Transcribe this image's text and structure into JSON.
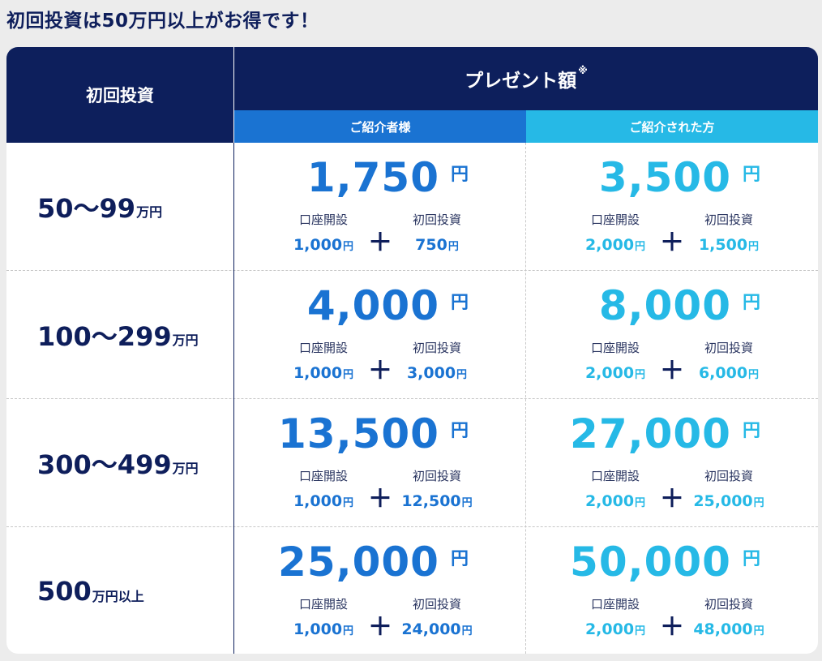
{
  "heading": "初回投資は50万円以上がお得です！",
  "header": {
    "investment": "初回投資",
    "present": "プレゼント額",
    "present_note": "※",
    "referrer": "ご紹介者様",
    "referee": "ご紹介された方"
  },
  "labels": {
    "account": "口座開設",
    "first_invest": "初回投資",
    "yen": "円",
    "plus": "＋"
  },
  "colors": {
    "navy": "#0d1f5c",
    "blue": "#1a73d2",
    "cyan": "#26b9e6"
  },
  "rows": [
    {
      "range": "50〜99",
      "unit": "万円",
      "referrer": {
        "total": "1,750",
        "account": "1,000",
        "invest": "750"
      },
      "referee": {
        "total": "3,500",
        "account": "2,000",
        "invest": "1,500"
      }
    },
    {
      "range": "100〜299",
      "unit": "万円",
      "referrer": {
        "total": "4,000",
        "account": "1,000",
        "invest": "3,000"
      },
      "referee": {
        "total": "8,000",
        "account": "2,000",
        "invest": "6,000"
      }
    },
    {
      "range": "300〜499",
      "unit": "万円",
      "referrer": {
        "total": "13,500",
        "account": "1,000",
        "invest": "12,500"
      },
      "referee": {
        "total": "27,000",
        "account": "2,000",
        "invest": "25,000"
      }
    },
    {
      "range": "500",
      "unit": "万円以上",
      "referrer": {
        "total": "25,000",
        "account": "1,000",
        "invest": "24,000"
      },
      "referee": {
        "total": "50,000",
        "account": "2,000",
        "invest": "48,000"
      }
    }
  ]
}
